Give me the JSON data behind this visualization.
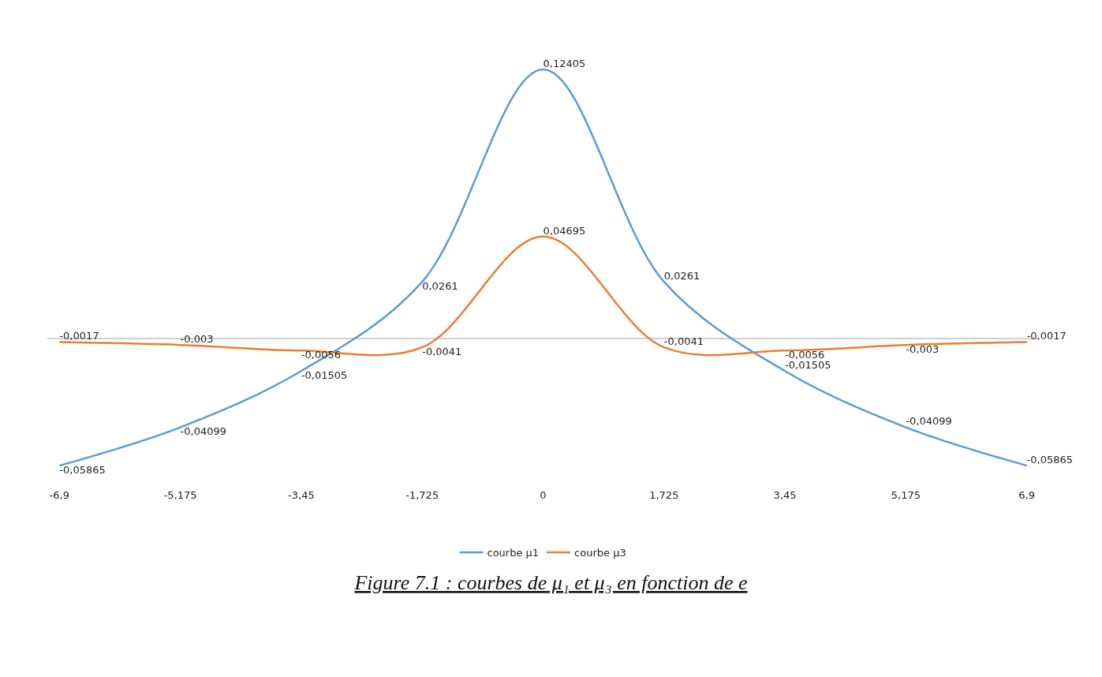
{
  "chart_data": {
    "type": "line",
    "title": "Figure 7.1 : courbes de μ₁ et μ₃ en fonction de e",
    "categories": [
      "-6,9",
      "-5,175",
      "-3,45",
      "-1,725",
      "0",
      "1,725",
      "3,45",
      "5,175",
      "6,9"
    ],
    "series": [
      {
        "name": "courbe μ1",
        "color": "#5b9bd5",
        "values": [
          -0.05865,
          -0.04099,
          -0.01505,
          0.0261,
          0.12405,
          0.0261,
          -0.01505,
          -0.04099,
          -0.05865
        ],
        "value_labels": [
          "-0,05865",
          "-0,04099",
          "-0,01505",
          "0,0261",
          "0,12405",
          "0,0261",
          "-0,01505",
          "-0,04099",
          "-0,05865"
        ]
      },
      {
        "name": "courbe μ3",
        "color": "#ed7d31",
        "values": [
          -0.0017,
          -0.003,
          -0.0056,
          -0.0041,
          0.04695,
          -0.0041,
          -0.0056,
          -0.003,
          -0.0017
        ],
        "value_labels": [
          "-0,0017",
          "-0,003",
          "-0,0056",
          "-0,0041",
          "0,04695",
          "-0,0041",
          "-0,0056",
          "-0,003",
          "-0,0017"
        ]
      }
    ],
    "legend": "bottom",
    "tick_labels": "x",
    "marker": "none",
    "line_style": "solid"
  }
}
